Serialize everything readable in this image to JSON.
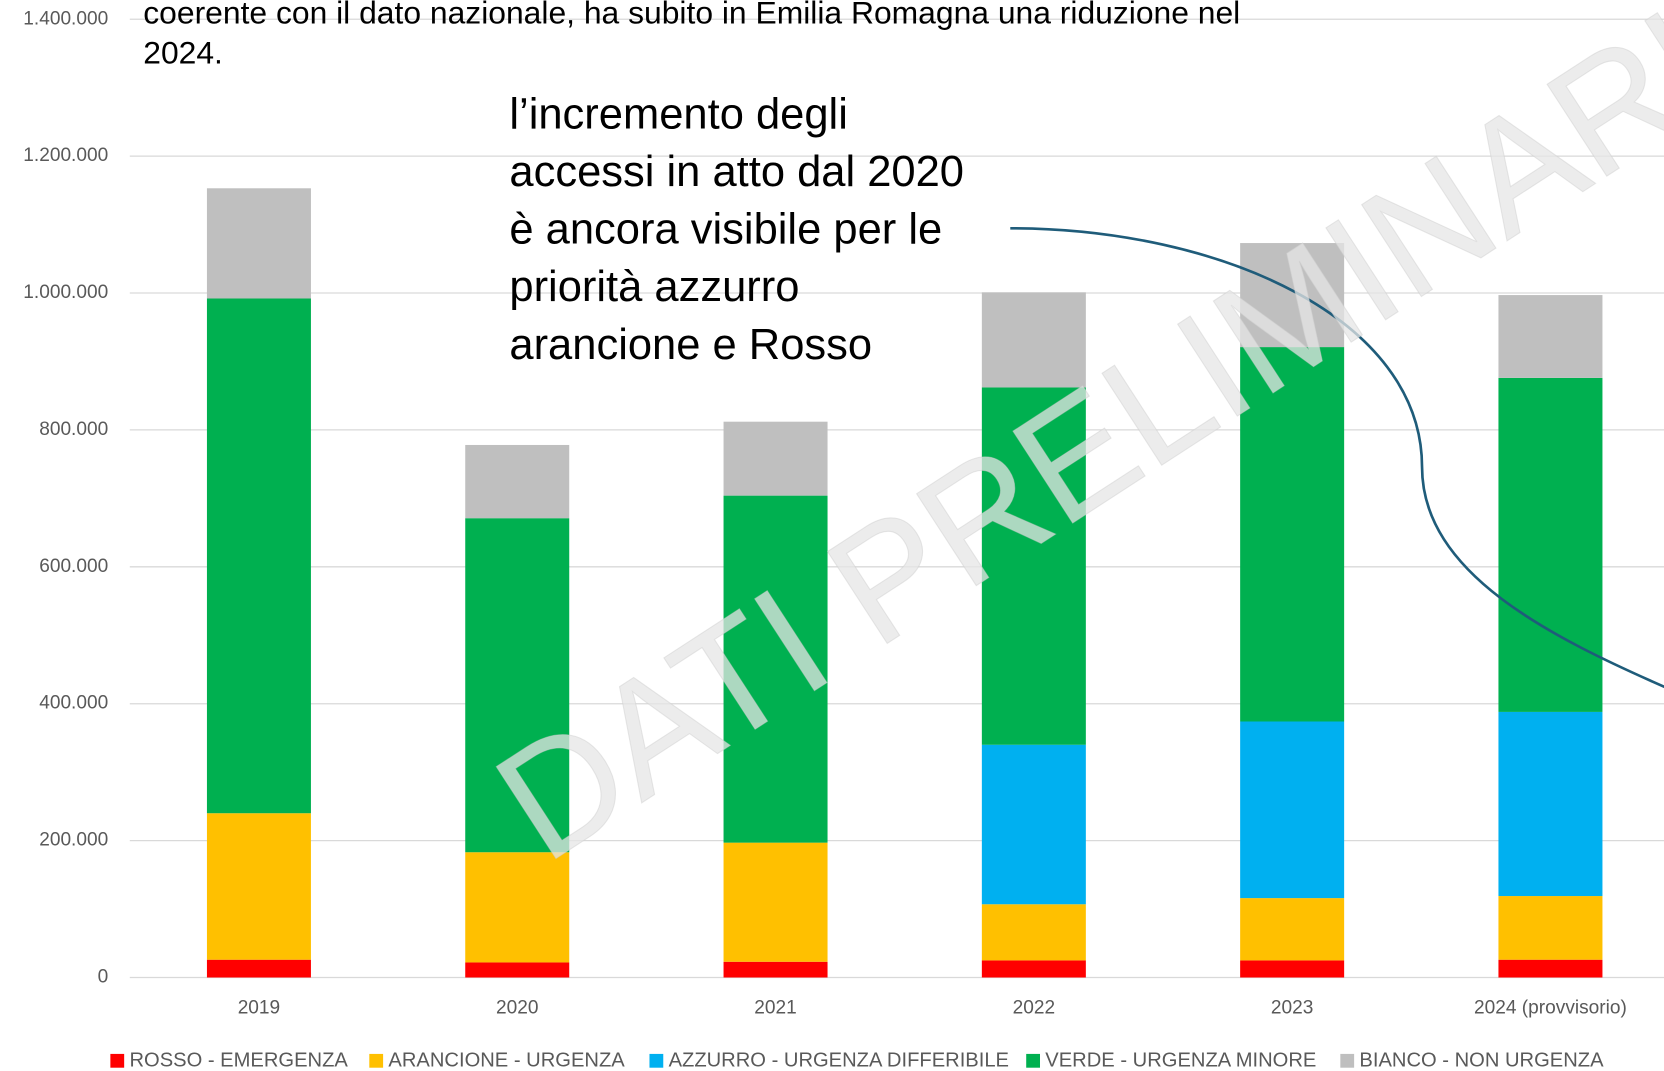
{
  "chart_data": {
    "type": "stacked_bar",
    "note": [
      "coerente con il dato nazionale, ha subito in Emilia Romagna una riduzione nel",
      "2024."
    ],
    "annotation": [
      "l’incremento degli",
      "accessi in atto dal 2020",
      "è ancora visibile per le",
      "priorità azzurro",
      "arancione e Rosso"
    ],
    "watermark": "DATI PRELIMINARI",
    "categories": [
      "2019",
      "2020",
      "2021",
      "2022",
      "2023",
      "2024 (provvisorio)"
    ],
    "series": [
      {
        "name": "ROSSO - EMERGENZA",
        "color": "#ff0000",
        "values": [
          26000,
          22000,
          23000,
          25000,
          25000,
          26000
        ]
      },
      {
        "name": "ARANCIONE - URGENZA",
        "color": "#ffc000",
        "values": [
          214000,
          161000,
          174000,
          82000,
          91000,
          93000
        ]
      },
      {
        "name": "AZZURRO - URGENZA DIFFERIBILE",
        "color": "#00b0f0",
        "values": [
          0,
          0,
          0,
          233000,
          258000,
          269000
        ]
      },
      {
        "name": "VERDE - URGENZA MINORE",
        "color": "#00b050",
        "values": [
          752000,
          488000,
          507000,
          522000,
          547000,
          488000
        ]
      },
      {
        "name": "BIANCO - NON URGENZA",
        "color": "#bfbfbf",
        "values": [
          161000,
          107000,
          108000,
          139000,
          152000,
          121000
        ]
      }
    ],
    "ylim": [
      0,
      1400000
    ],
    "yticks": [
      0,
      {
        "value": 200000,
        "label": "200.000"
      },
      {
        "value": 400000,
        "label": "400.000"
      },
      {
        "value": 600000,
        "label": "600.000"
      },
      {
        "value": 800000,
        "label": "800.000"
      },
      {
        "value": 1000000,
        "label": "1.000.000"
      },
      {
        "value": 1200000,
        "label": "1.200.000"
      },
      {
        "value": 1400000,
        "label": "1.400.000"
      }
    ],
    "grid": true,
    "legend": "bottom"
  }
}
